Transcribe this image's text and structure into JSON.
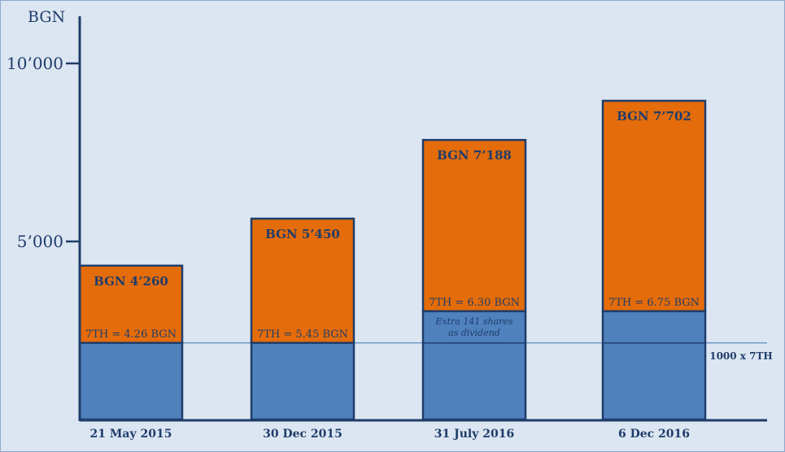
{
  "chart_data": {
    "type": "bar",
    "stacked": true,
    "ylabel": "BGN",
    "ylim": [
      0,
      11000
    ],
    "yticks": [
      {
        "value": 5000,
        "label": "5’000"
      },
      {
        "value": 10000,
        "label": "10’000"
      }
    ],
    "grid": false,
    "categories": [
      "21 May 2015",
      "30 Dec 2015",
      "31 July 2016",
      "6 Dec 2016"
    ],
    "bars": [
      {
        "total_label": "BGN 4’260",
        "value": 4260,
        "axis_top": 4320,
        "price_label": "7TH = 4.26 BGN",
        "blue_top": 2150,
        "note": ""
      },
      {
        "total_label": "BGN 5’450",
        "value": 5450,
        "axis_top": 5640,
        "price_label": "7TH = 5.45 BGN",
        "blue_top": 2150,
        "note": ""
      },
      {
        "total_label": "BGN 7’188",
        "value": 7188,
        "axis_top": 7850,
        "price_label": "7TH = 6.30 BGN",
        "blue_top": 3040,
        "note_lines": [
          "Extra 141 shares",
          "as dividend"
        ]
      },
      {
        "total_label": "BGN 7’702",
        "value": 7702,
        "axis_top": 8950,
        "price_label": "7TH = 6.75 BGN",
        "blue_top": 3040,
        "note": ""
      }
    ],
    "reference_line": {
      "value": 2150,
      "label": "1000 x 7TH"
    },
    "colors": {
      "background": "#dce6f2",
      "orange": "#e46c0a",
      "blue": "#4f81bd",
      "outline": "#1f3d6b",
      "text": "#1f3d6b",
      "ref_line": "#4f81bd"
    }
  }
}
